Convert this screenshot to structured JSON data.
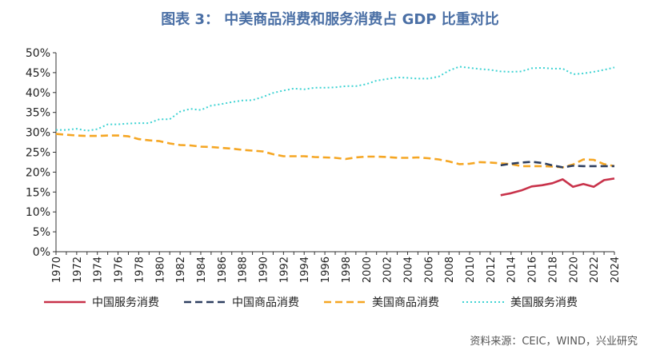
{
  "title": "图表 3： 中美商品消费和服务消费占 GDP 比重对比",
  "source": "资料来源：CEIC，WIND，兴业研究",
  "colors": {
    "title": "#4a6fa5",
    "china_services": "#c8324a",
    "china_goods": "#2e3f60",
    "us_goods": "#f5a623",
    "us_services": "#3fd3d3"
  },
  "chart_data": {
    "type": "line",
    "title": "中美商品消费和服务消费占 GDP 比重对比",
    "xlabel": "",
    "ylabel": "",
    "ylim": [
      0,
      50
    ],
    "yticks": [
      0,
      5,
      10,
      15,
      20,
      25,
      30,
      35,
      40,
      45,
      50
    ],
    "ytick_labels": [
      "0%",
      "5%",
      "10%",
      "15%",
      "20%",
      "25%",
      "30%",
      "35%",
      "40%",
      "45%",
      "50%"
    ],
    "xlim": [
      1970,
      2024
    ],
    "xtick_labels": [
      "1970",
      "1972",
      "1974",
      "1976",
      "1978",
      "1980",
      "1982",
      "1984",
      "1986",
      "1988",
      "1990",
      "1992",
      "1994",
      "1996",
      "1998",
      "2000",
      "2002",
      "2004",
      "2006",
      "2008",
      "2010",
      "2012",
      "2014",
      "2016",
      "2018",
      "2020",
      "2022",
      "2024"
    ],
    "legend_position": "bottom",
    "series": [
      {
        "name": "中国服务消费",
        "style": "solid",
        "color": "#c8324a",
        "x": [
          2013,
          2014,
          2015,
          2016,
          2017,
          2018,
          2019,
          2020,
          2021,
          2022,
          2023,
          2024
        ],
        "values": [
          14.2,
          14.7,
          15.4,
          16.4,
          16.7,
          17.2,
          18.2,
          16.3,
          17.0,
          16.3,
          18.0,
          18.4
        ]
      },
      {
        "name": "中国商品消费",
        "style": "dashed",
        "color": "#2e3f60",
        "x": [
          2013,
          2014,
          2015,
          2016,
          2017,
          2018,
          2019,
          2020,
          2021,
          2022,
          2023,
          2024
        ],
        "values": [
          21.7,
          22.1,
          22.4,
          22.6,
          22.3,
          21.7,
          21.2,
          21.6,
          21.5,
          21.5,
          21.5,
          21.5
        ]
      },
      {
        "name": "美国商品消费",
        "style": "dashed",
        "color": "#f5a623",
        "x": [
          1970,
          1971,
          1972,
          1973,
          1974,
          1975,
          1976,
          1977,
          1978,
          1979,
          1980,
          1981,
          1982,
          1983,
          1984,
          1985,
          1986,
          1987,
          1988,
          1989,
          1990,
          1991,
          1992,
          1993,
          1994,
          1995,
          1996,
          1997,
          1998,
          1999,
          2000,
          2001,
          2002,
          2003,
          2004,
          2005,
          2006,
          2007,
          2008,
          2009,
          2010,
          2011,
          2012,
          2013,
          2014,
          2015,
          2016,
          2017,
          2018,
          2019,
          2020,
          2021,
          2022,
          2023,
          2024
        ],
        "values": [
          29.6,
          29.4,
          29.2,
          29.1,
          29.1,
          29.2,
          29.2,
          29.0,
          28.3,
          28.0,
          27.8,
          27.2,
          26.8,
          26.7,
          26.4,
          26.3,
          26.1,
          25.9,
          25.6,
          25.4,
          25.2,
          24.5,
          24.0,
          24.0,
          24.0,
          23.8,
          23.7,
          23.6,
          23.3,
          23.7,
          23.9,
          23.9,
          23.8,
          23.6,
          23.6,
          23.7,
          23.5,
          23.2,
          22.7,
          22.0,
          22.1,
          22.5,
          22.4,
          22.2,
          22.0,
          21.5,
          21.5,
          21.5,
          21.4,
          21.2,
          21.9,
          23.2,
          23.1,
          22.0,
          21.5
        ]
      },
      {
        "name": "美国服务消费",
        "style": "dotted",
        "color": "#3fd3d3",
        "x": [
          1970,
          1971,
          1972,
          1973,
          1974,
          1975,
          1976,
          1977,
          1978,
          1979,
          1980,
          1981,
          1982,
          1983,
          1984,
          1985,
          1986,
          1987,
          1988,
          1989,
          1990,
          1991,
          1992,
          1993,
          1994,
          1995,
          1996,
          1997,
          1998,
          1999,
          2000,
          2001,
          2002,
          2003,
          2004,
          2005,
          2006,
          2007,
          2008,
          2009,
          2010,
          2011,
          2012,
          2013,
          2014,
          2015,
          2016,
          2017,
          2018,
          2019,
          2020,
          2021,
          2022,
          2023,
          2024
        ],
        "values": [
          30.6,
          30.6,
          30.9,
          30.4,
          30.8,
          32.0,
          32.0,
          32.2,
          32.3,
          32.3,
          33.3,
          33.3,
          35.2,
          35.9,
          35.6,
          36.7,
          37.1,
          37.6,
          38.0,
          38.1,
          38.9,
          39.9,
          40.5,
          41.0,
          40.8,
          41.2,
          41.2,
          41.3,
          41.6,
          41.6,
          42.1,
          43.0,
          43.4,
          43.8,
          43.7,
          43.5,
          43.5,
          44.0,
          45.5,
          46.5,
          46.2,
          45.9,
          45.7,
          45.3,
          45.2,
          45.3,
          46.1,
          46.2,
          46.0,
          46.0,
          44.6,
          44.8,
          45.2,
          45.7,
          46.3
        ]
      }
    ]
  }
}
